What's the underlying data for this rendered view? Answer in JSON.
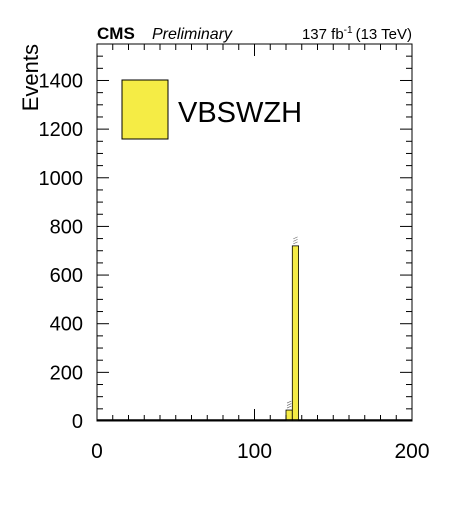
{
  "header": {
    "experiment": "CMS",
    "status": "Preliminary",
    "lumi_value": "137 fb",
    "lumi_exp": "-1",
    "lumi_energy": "(13 TeV)"
  },
  "legend": {
    "label": "VBSWZH",
    "color": "#f5ec45"
  },
  "chart_data": {
    "type": "bar",
    "title": "",
    "xlabel": "",
    "ylabel": "Events",
    "xlim": [
      0,
      200
    ],
    "ylim": [
      0,
      1550
    ],
    "xticks": [
      0,
      100,
      200
    ],
    "yticks": [
      0,
      200,
      400,
      600,
      800,
      1000,
      1200,
      1400
    ],
    "bin_width": 4,
    "series": [
      {
        "name": "VBSWZH",
        "color": "#f5ec45",
        "bins": [
          {
            "x0": 120,
            "x1": 124,
            "value": 45
          },
          {
            "x0": 124,
            "x1": 128,
            "value": 720
          }
        ]
      }
    ]
  }
}
